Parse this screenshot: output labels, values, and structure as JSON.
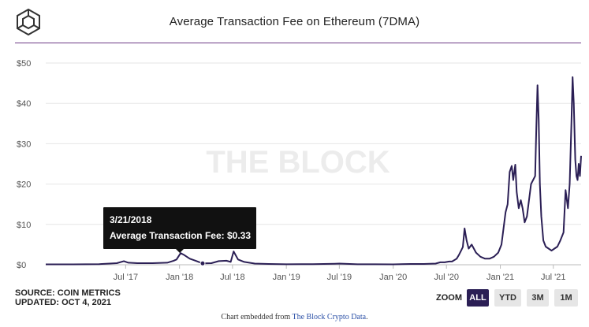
{
  "title": "Average Transaction Fee on Ethereum (7DMA)",
  "watermark": "THE BLOCK",
  "source_line": "SOURCE: COIN METRICS",
  "updated_line": "UPDATED: OCT 4, 2021",
  "zoom": {
    "label": "ZOOM",
    "buttons": [
      {
        "label": "ALL",
        "active": true
      },
      {
        "label": "YTD",
        "active": false
      },
      {
        "label": "3M",
        "active": false
      },
      {
        "label": "1M",
        "active": false
      }
    ]
  },
  "embed": {
    "prefix": "Chart embedded from ",
    "link_text": "The Block Crypto Data",
    "suffix": "."
  },
  "tooltip": {
    "date": "3/21/2018",
    "label": "Average Transaction Fee:",
    "value": "$0.33"
  },
  "colors": {
    "line": "#2b1f55",
    "accent": "#6d3a86",
    "grid": "#e6e6e6"
  },
  "chart_data": {
    "type": "line",
    "title": "Average Transaction Fee on Ethereum (7DMA)",
    "xlabel": "",
    "ylabel": "",
    "ylim": [
      0,
      50
    ],
    "xlim": [
      "2016-10-01",
      "2021-10-04"
    ],
    "y_ticks": [
      {
        "value": 0,
        "label": "$0"
      },
      {
        "value": 10,
        "label": "$10"
      },
      {
        "value": 20,
        "label": "$20"
      },
      {
        "value": 30,
        "label": "$30"
      },
      {
        "value": 40,
        "label": "$40"
      },
      {
        "value": 50,
        "label": "$50"
      }
    ],
    "x_ticks": [
      {
        "date": "2017-07-01",
        "label": "Jul '17"
      },
      {
        "date": "2018-01-01",
        "label": "Jan '18"
      },
      {
        "date": "2018-07-01",
        "label": "Jul '18"
      },
      {
        "date": "2019-01-01",
        "label": "Jan '19"
      },
      {
        "date": "2019-07-01",
        "label": "Jul '19"
      },
      {
        "date": "2020-01-01",
        "label": "Jan '20"
      },
      {
        "date": "2020-07-01",
        "label": "Jul '20"
      },
      {
        "date": "2021-01-01",
        "label": "Jan '21"
      },
      {
        "date": "2021-07-01",
        "label": "Jul '21"
      }
    ],
    "grid": true,
    "legend": "none",
    "highlight": {
      "x": "2018-03-21",
      "y": 0.33
    },
    "series": [
      {
        "x": [
          "2016-10-01",
          "2017-01-01",
          "2017-04-01",
          "2017-06-01",
          "2017-06-25",
          "2017-07-10",
          "2017-08-10",
          "2017-10-01",
          "2017-11-20",
          "2017-12-12",
          "2017-12-22",
          "2018-01-05",
          "2018-01-15",
          "2018-02-05",
          "2018-02-25",
          "2018-03-21",
          "2018-04-20",
          "2018-05-15",
          "2018-06-10",
          "2018-06-25",
          "2018-07-05",
          "2018-07-20",
          "2018-08-10",
          "2018-09-15",
          "2018-11-01",
          "2019-01-01",
          "2019-04-01",
          "2019-06-15",
          "2019-07-01",
          "2019-09-01",
          "2019-11-01",
          "2020-01-01",
          "2020-03-01",
          "2020-04-15",
          "2020-05-25",
          "2020-06-10",
          "2020-06-25",
          "2020-07-10",
          "2020-07-20",
          "2020-08-05",
          "2020-08-13",
          "2020-08-20",
          "2020-08-26",
          "2020-09-01",
          "2020-09-08",
          "2020-09-15",
          "2020-09-25",
          "2020-10-10",
          "2020-10-25",
          "2020-11-10",
          "2020-11-25",
          "2020-12-10",
          "2020-12-25",
          "2021-01-05",
          "2021-01-12",
          "2021-01-19",
          "2021-01-26",
          "2021-02-02",
          "2021-02-09",
          "2021-02-14",
          "2021-02-21",
          "2021-02-26",
          "2021-03-05",
          "2021-03-12",
          "2021-03-18",
          "2021-03-25",
          "2021-04-02",
          "2021-04-09",
          "2021-04-16",
          "2021-04-23",
          "2021-04-30",
          "2021-05-04",
          "2021-05-08",
          "2021-05-12",
          "2021-05-16",
          "2021-05-21",
          "2021-05-28",
          "2021-06-05",
          "2021-06-15",
          "2021-06-25",
          "2021-07-05",
          "2021-07-15",
          "2021-07-25",
          "2021-08-05",
          "2021-08-12",
          "2021-08-20",
          "2021-08-26",
          "2021-09-01",
          "2021-09-05",
          "2021-09-09",
          "2021-09-14",
          "2021-09-18",
          "2021-09-22",
          "2021-09-26",
          "2021-09-30",
          "2021-10-04"
        ],
        "y": [
          0.1,
          0.1,
          0.15,
          0.4,
          0.9,
          0.5,
          0.4,
          0.4,
          0.5,
          1.0,
          1.3,
          2.9,
          2.5,
          1.5,
          1.0,
          0.33,
          0.4,
          0.9,
          1.0,
          0.7,
          3.3,
          1.3,
          0.7,
          0.3,
          0.2,
          0.12,
          0.15,
          0.25,
          0.3,
          0.12,
          0.12,
          0.1,
          0.2,
          0.2,
          0.3,
          0.6,
          0.6,
          0.8,
          0.8,
          1.5,
          2.5,
          3.5,
          4.4,
          9.0,
          6.0,
          4.0,
          5.0,
          3.0,
          2.0,
          1.5,
          1.5,
          2.0,
          3.0,
          5.0,
          9.0,
          13.0,
          15.0,
          23.0,
          24.5,
          21.0,
          24.8,
          18.0,
          14.0,
          16.0,
          14.0,
          10.5,
          12.0,
          16.0,
          20.0,
          21.0,
          22.0,
          34.0,
          44.5,
          36.0,
          20.0,
          12.0,
          6.0,
          4.5,
          4.0,
          3.5,
          4.0,
          4.5,
          6.0,
          8.0,
          18.5,
          14.0,
          20.0,
          35.0,
          46.5,
          40.0,
          26.0,
          22.0,
          21.0,
          25.0,
          22.0,
          27.0
        ]
      }
    ]
  }
}
